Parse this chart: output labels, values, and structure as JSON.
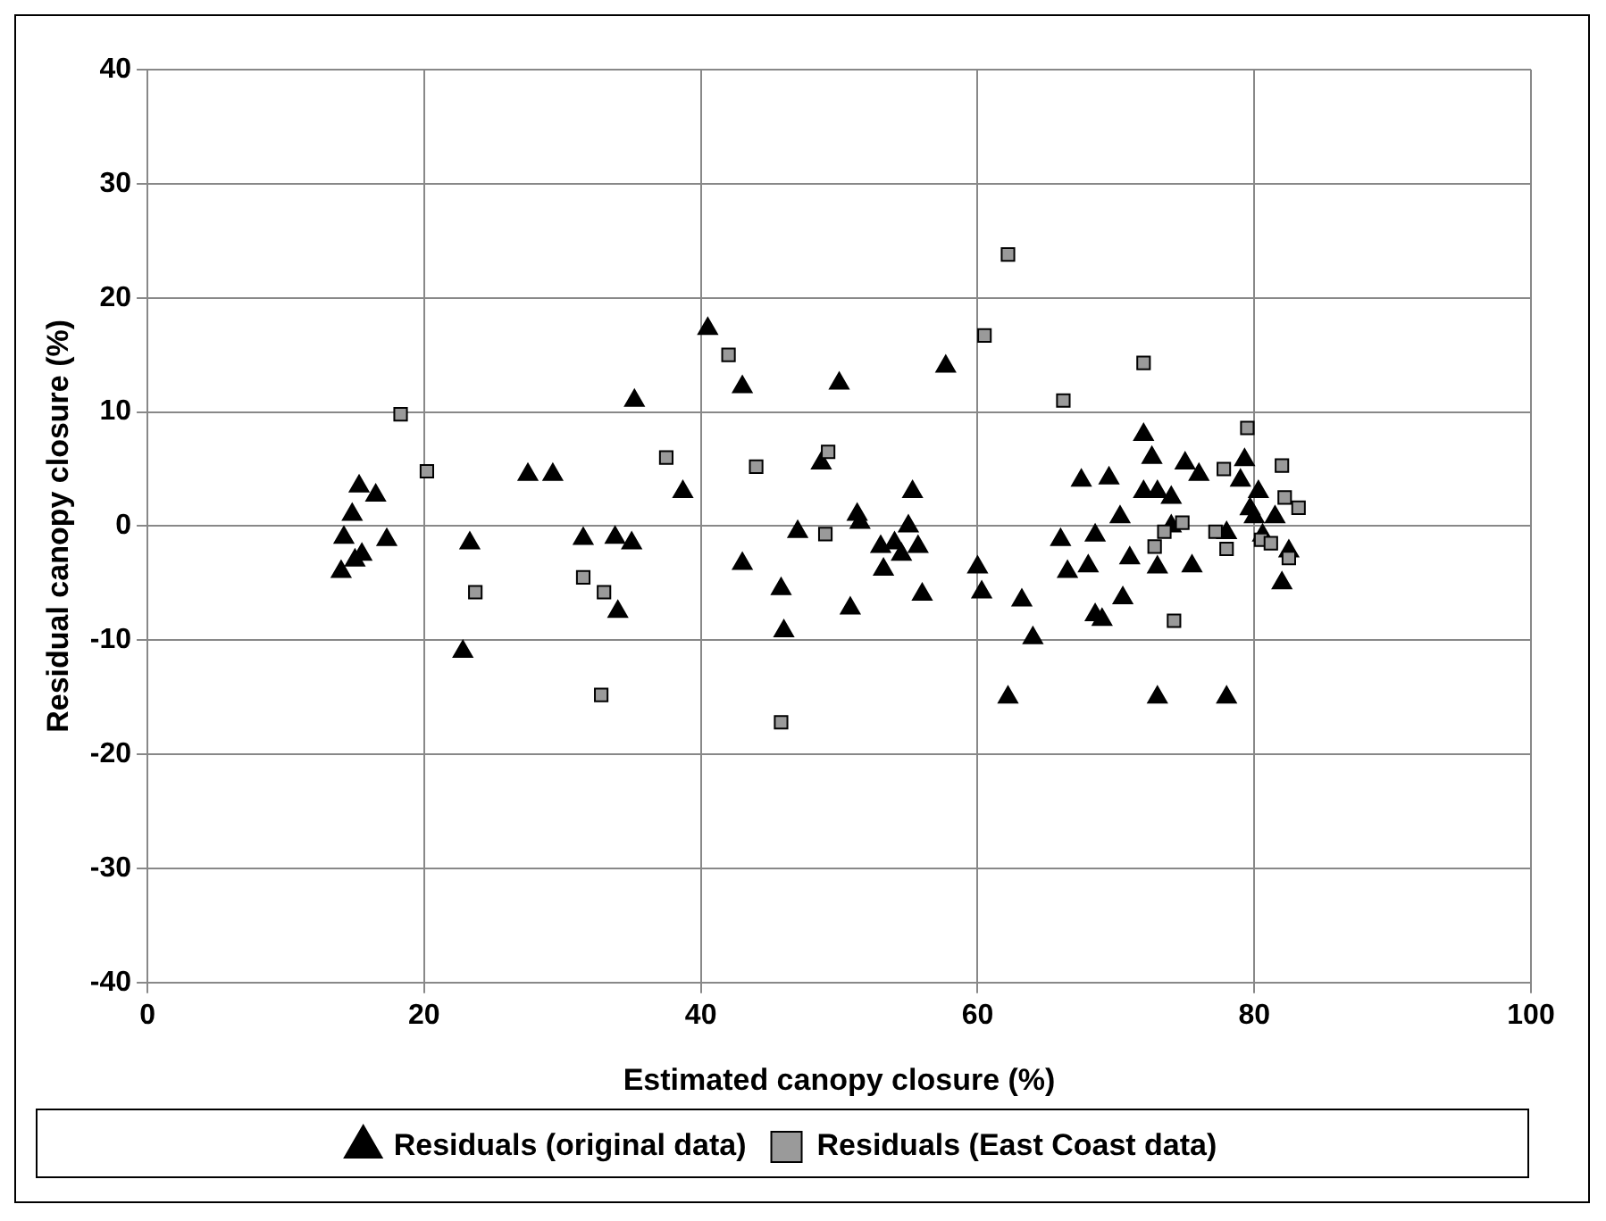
{
  "chart_data": {
    "type": "scatter",
    "xlabel": "Estimated canopy closure (%)",
    "ylabel": "Residual canopy closure (%)",
    "xlim": [
      0,
      100
    ],
    "xticks": [
      0,
      20,
      40,
      60,
      80,
      100
    ],
    "ylim": [
      -40,
      40
    ],
    "yticks": [
      -40,
      -30,
      -20,
      -10,
      0,
      10,
      20,
      30,
      40
    ],
    "grid": true,
    "legend": "bottom",
    "series": [
      {
        "name": "Residuals (original data)",
        "color": "#000000",
        "marker": "triangle",
        "x": [
          14,
          14.2,
          14.8,
          15.3,
          15.5,
          15,
          16.5,
          17.3,
          22.8,
          23.3,
          27.5,
          29.3,
          31.5,
          33.8,
          34,
          35,
          35.2,
          38.7,
          40.5,
          43,
          43,
          45.8,
          46,
          47,
          48.7,
          50,
          50.8,
          51.3,
          51.5,
          53,
          53.2,
          54,
          54.5,
          55,
          55.3,
          55.7,
          56,
          57.7,
          60,
          60.3,
          62.2,
          63.2,
          64,
          66,
          66.5,
          67.5,
          68,
          68.5,
          68.5,
          69,
          69.5,
          70.3,
          70.5,
          71,
          72,
          72,
          72.6,
          73,
          73,
          73,
          74,
          74,
          75,
          75.5,
          76,
          78,
          78,
          79,
          79.3,
          79.7,
          80,
          80.3,
          80.6,
          81.5,
          82,
          82.5
        ],
        "values": [
          -4,
          -1,
          1,
          3.5,
          -2.5,
          -3,
          2.7,
          -1.2,
          -11,
          -1.5,
          4.5,
          4.5,
          -1.1,
          -1,
          -7.5,
          -1.5,
          11,
          3,
          17.3,
          12.2,
          -3.3,
          -5.5,
          -9.2,
          -0.5,
          5.5,
          12.5,
          -7.2,
          1,
          0.3,
          -1.8,
          -3.8,
          -1.5,
          -2.5,
          0,
          3,
          -1.8,
          -6,
          14,
          -3.6,
          -5.8,
          -15,
          -6.5,
          -9.8,
          -1.2,
          -4,
          4,
          -3.5,
          -0.8,
          -7.8,
          -8.2,
          4.2,
          0.8,
          -6.3,
          -2.8,
          8,
          3,
          6,
          3,
          -3.6,
          -15,
          2.5,
          0,
          5.5,
          -3.5,
          4.5,
          -0.6,
          -15,
          4,
          5.8,
          1.5,
          0.8,
          3,
          -0.8,
          0.8,
          -5,
          -2.2
        ]
      },
      {
        "name": "Residuals (East Coast data)",
        "color": "#9a9a9a",
        "marker": "square",
        "x": [
          18.3,
          20.2,
          23.7,
          31.5,
          32.8,
          33,
          37.5,
          42,
          44,
          45.8,
          49,
          49.2,
          60.5,
          62.2,
          66.2,
          72,
          72.8,
          73.5,
          74.2,
          74.8,
          77.2,
          77.8,
          78,
          79.5,
          80.5,
          81.2,
          82,
          82.2,
          82.5,
          83.2
        ],
        "values": [
          9.8,
          4.8,
          -5.8,
          -4.5,
          -14.8,
          -5.8,
          6,
          15,
          5.2,
          -17.2,
          -0.7,
          6.5,
          16.7,
          23.8,
          11,
          14.3,
          -1.8,
          -0.5,
          -8.3,
          0.3,
          -0.5,
          5,
          -2,
          8.6,
          -1.2,
          -1.5,
          5.3,
          2.5,
          -2.8,
          1.6
        ]
      }
    ]
  }
}
